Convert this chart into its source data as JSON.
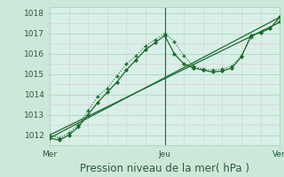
{
  "background_color": "#cce8d8",
  "plot_bg_color": "#d8f0e8",
  "grid_color": "#b0d8c0",
  "line_color": "#1a6b2a",
  "title": "Pression niveau de la mer( hPa )",
  "x_ticks": [
    0,
    48,
    96
  ],
  "x_tick_labels": [
    "Mer",
    "Jeu",
    "Ven"
  ],
  "ylim": [
    1011.5,
    1018.3
  ],
  "yticks": [
    1012,
    1013,
    1014,
    1015,
    1016,
    1017,
    1018
  ],
  "series_dotted_plus": {
    "x": [
      0,
      4,
      8,
      12,
      16,
      20,
      24,
      28,
      32,
      36,
      40,
      44,
      48,
      52,
      56,
      60,
      64,
      68,
      72,
      76,
      80,
      84,
      88,
      92,
      96
    ],
    "y": [
      1012.0,
      1011.85,
      1012.1,
      1012.5,
      1013.2,
      1013.9,
      1014.3,
      1014.9,
      1015.5,
      1015.9,
      1016.4,
      1016.7,
      1017.0,
      1016.6,
      1015.9,
      1015.4,
      1015.25,
      1015.2,
      1015.25,
      1015.4,
      1015.9,
      1016.8,
      1017.1,
      1017.3,
      1017.6
    ]
  },
  "series_solid_diamond": {
    "x": [
      0,
      4,
      8,
      12,
      16,
      20,
      24,
      28,
      32,
      36,
      40,
      44,
      48,
      52,
      56,
      60,
      64,
      68,
      72,
      76,
      80,
      84,
      88,
      92,
      96
    ],
    "y": [
      1011.85,
      1011.75,
      1012.0,
      1012.4,
      1013.0,
      1013.6,
      1014.1,
      1014.6,
      1015.2,
      1015.7,
      1016.2,
      1016.55,
      1016.9,
      1016.0,
      1015.5,
      1015.3,
      1015.2,
      1015.1,
      1015.15,
      1015.3,
      1015.85,
      1016.9,
      1017.05,
      1017.25,
      1017.8
    ]
  },
  "series_line1": {
    "x": [
      0,
      96
    ],
    "y": [
      1012.0,
      1017.55
    ]
  },
  "series_line2": {
    "x": [
      0,
      96
    ],
    "y": [
      1011.85,
      1017.8
    ]
  },
  "vline_x": 48,
  "font_color": "#2a5a3a",
  "tick_fontsize": 6.5,
  "label_fontsize": 8.5
}
